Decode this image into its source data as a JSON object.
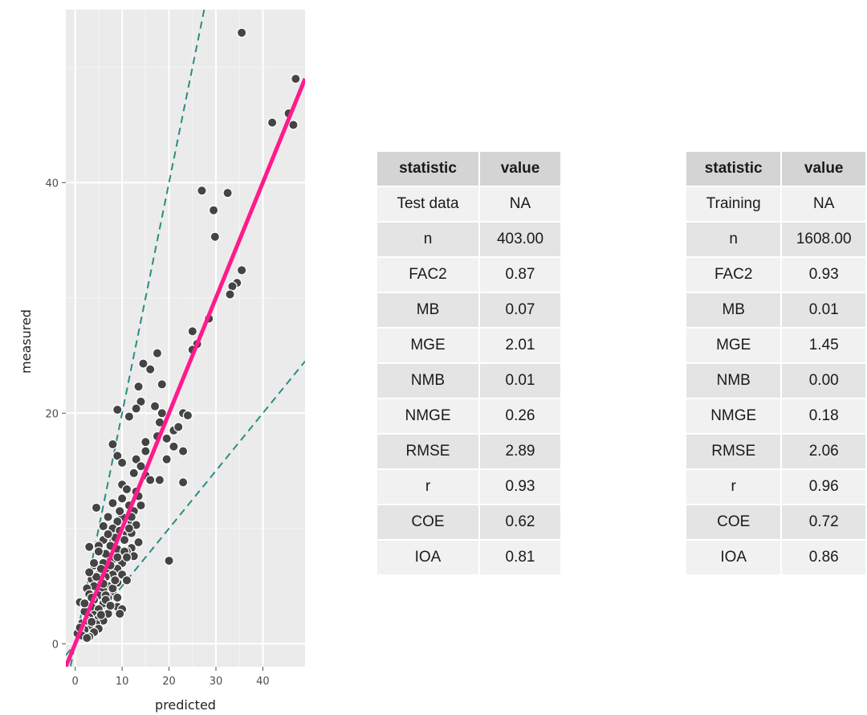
{
  "chart_data": {
    "type": "scatter",
    "xlabel": "predicted",
    "ylabel": "measured",
    "xlim": [
      -2,
      49
    ],
    "ylim": [
      -2,
      55
    ],
    "x_ticks": [
      0,
      10,
      20,
      30,
      40
    ],
    "y_ticks": [
      0,
      20,
      40
    ],
    "grid": true,
    "reference_lines": [
      {
        "type": "1:1 fit",
        "slope": 1,
        "intercept": 0,
        "style": "solid",
        "color": "#ff1a8c"
      },
      {
        "type": "factor of 2 upper",
        "slope": 2,
        "intercept": 0,
        "style": "dashed",
        "color": "#2a8c80"
      },
      {
        "type": "factor of 2 lower",
        "slope": 0.5,
        "intercept": 0,
        "style": "dashed",
        "color": "#2a8c80"
      }
    ],
    "points": [
      [
        35.5,
        53
      ],
      [
        47,
        49
      ],
      [
        45.5,
        46
      ],
      [
        42,
        45.2
      ],
      [
        46.5,
        45
      ],
      [
        27,
        39.3
      ],
      [
        32.5,
        39.1
      ],
      [
        29.5,
        37.6
      ],
      [
        29.8,
        35.3
      ],
      [
        35.5,
        32.4
      ],
      [
        34.5,
        31.3
      ],
      [
        33.5,
        31
      ],
      [
        33,
        30.3
      ],
      [
        28.5,
        28.2
      ],
      [
        25,
        27.1
      ],
      [
        26,
        26
      ],
      [
        25,
        25.5
      ],
      [
        17.5,
        25.2
      ],
      [
        14.5,
        24.3
      ],
      [
        16,
        23.8
      ],
      [
        18.5,
        22.5
      ],
      [
        13.5,
        22.3
      ],
      [
        14,
        21
      ],
      [
        13,
        20.4
      ],
      [
        17,
        20.6
      ],
      [
        18.5,
        20
      ],
      [
        23,
        20
      ],
      [
        24,
        19.8
      ],
      [
        11.5,
        19.7
      ],
      [
        9,
        20.3
      ],
      [
        18,
        19.2
      ],
      [
        21,
        18.5
      ],
      [
        22,
        18.8
      ],
      [
        17.5,
        18
      ],
      [
        19.5,
        17.8
      ],
      [
        15,
        17.5
      ],
      [
        8,
        17.3
      ],
      [
        21,
        17.1
      ],
      [
        9,
        16.3
      ],
      [
        15,
        16.7
      ],
      [
        23,
        16.7
      ],
      [
        19.5,
        16
      ],
      [
        13,
        16
      ],
      [
        10,
        15.7
      ],
      [
        14,
        15.4
      ],
      [
        12.5,
        14.8
      ],
      [
        15,
        14.6
      ],
      [
        16,
        14.2
      ],
      [
        18,
        14.2
      ],
      [
        23,
        14
      ],
      [
        10,
        13.8
      ],
      [
        11,
        13.4
      ],
      [
        13,
        13.2
      ],
      [
        13.5,
        12.8
      ],
      [
        10,
        12.6
      ],
      [
        8,
        12.2
      ],
      [
        11.5,
        12
      ],
      [
        14,
        12
      ],
      [
        4.5,
        11.8
      ],
      [
        12.5,
        11.5
      ],
      [
        10,
        11
      ],
      [
        7,
        11
      ],
      [
        9,
        10.6
      ],
      [
        12,
        10.5
      ],
      [
        13,
        10.3
      ],
      [
        8,
        10
      ],
      [
        9.5,
        9.8
      ],
      [
        11,
        9.5
      ],
      [
        12,
        9.6
      ],
      [
        10.5,
        9
      ],
      [
        6,
        9
      ],
      [
        8,
        8.8
      ],
      [
        13.5,
        8.8
      ],
      [
        12,
        8.3
      ],
      [
        9,
        8.2
      ],
      [
        11,
        8
      ],
      [
        3,
        8.4
      ],
      [
        5,
        8.5
      ],
      [
        12.5,
        7.6
      ],
      [
        7,
        7.5
      ],
      [
        8,
        7.3
      ],
      [
        20,
        7.2
      ],
      [
        6,
        7
      ],
      [
        10,
        7
      ],
      [
        4,
        6.8
      ],
      [
        9,
        6.5
      ],
      [
        7,
        6.3
      ],
      [
        5,
        6
      ],
      [
        8,
        6
      ],
      [
        6.5,
        5.8
      ],
      [
        3.5,
        5.6
      ],
      [
        5.5,
        5.5
      ],
      [
        9,
        5.3
      ],
      [
        7,
        5
      ],
      [
        4,
        5
      ],
      [
        2.5,
        4.8
      ],
      [
        6,
        4.6
      ],
      [
        8,
        4.5
      ],
      [
        3,
        4.3
      ],
      [
        5,
        4.2
      ],
      [
        7,
        4
      ],
      [
        4,
        3.8
      ],
      [
        1,
        3.6
      ],
      [
        6,
        3.5
      ],
      [
        9,
        3.2
      ],
      [
        3.5,
        3.2
      ],
      [
        5,
        3
      ],
      [
        10,
        3
      ],
      [
        2,
        2.8
      ],
      [
        7,
        2.6
      ],
      [
        9.5,
        2.6
      ],
      [
        4,
        2.5
      ],
      [
        3,
        2.3
      ],
      [
        5,
        2.2
      ],
      [
        6,
        2
      ],
      [
        1.5,
        1.8
      ],
      [
        4.5,
        1.7
      ],
      [
        3,
        1.5
      ],
      [
        5,
        1.3
      ],
      [
        2,
        1.2
      ],
      [
        4,
        1
      ],
      [
        0.5,
        0.9
      ],
      [
        1.5,
        0.7
      ],
      [
        3,
        0.6
      ],
      [
        2.5,
        0.5
      ],
      [
        7.5,
        8.5
      ],
      [
        8.5,
        9.2
      ],
      [
        6.5,
        7.8
      ],
      [
        7.5,
        6.8
      ],
      [
        5.5,
        6.5
      ],
      [
        4.5,
        5.8
      ],
      [
        6.5,
        4.2
      ],
      [
        3.5,
        4
      ],
      [
        8,
        4.8
      ],
      [
        9,
        7.5
      ],
      [
        10.5,
        8
      ],
      [
        11.5,
        10
      ],
      [
        12,
        11
      ],
      [
        9.5,
        11.5
      ],
      [
        6,
        10.2
      ],
      [
        7,
        9.5
      ],
      [
        11,
        7.5
      ],
      [
        4,
        7
      ],
      [
        5,
        8
      ],
      [
        2,
        3.5
      ],
      [
        6.5,
        3.8
      ],
      [
        7.5,
        3.3
      ],
      [
        2.5,
        2
      ],
      [
        3.5,
        1.9
      ],
      [
        1,
        1.4
      ],
      [
        5.5,
        2.5
      ],
      [
        8.5,
        5.5
      ],
      [
        9,
        4
      ],
      [
        10,
        6
      ],
      [
        11,
        5.5
      ],
      [
        6,
        5.2
      ],
      [
        3,
        6.2
      ]
    ]
  },
  "tables": [
    {
      "headers": [
        "statistic",
        "value"
      ],
      "rows": [
        [
          "Test data",
          "NA"
        ],
        [
          "n",
          "403.00"
        ],
        [
          "FAC2",
          "0.87"
        ],
        [
          "MB",
          "0.07"
        ],
        [
          "MGE",
          "2.01"
        ],
        [
          "NMB",
          "0.01"
        ],
        [
          "NMGE",
          "0.26"
        ],
        [
          "RMSE",
          "2.89"
        ],
        [
          "r",
          "0.93"
        ],
        [
          "COE",
          "0.62"
        ],
        [
          "IOA",
          "0.81"
        ]
      ]
    },
    {
      "headers": [
        "statistic",
        "value"
      ],
      "rows": [
        [
          "Training",
          "NA"
        ],
        [
          "n",
          "1608.00"
        ],
        [
          "FAC2",
          "0.93"
        ],
        [
          "MB",
          "0.01"
        ],
        [
          "MGE",
          "1.45"
        ],
        [
          "NMB",
          "0.00"
        ],
        [
          "NMGE",
          "0.18"
        ],
        [
          "RMSE",
          "2.06"
        ],
        [
          "r",
          "0.96"
        ],
        [
          "COE",
          "0.72"
        ],
        [
          "IOA",
          "0.86"
        ]
      ]
    }
  ]
}
